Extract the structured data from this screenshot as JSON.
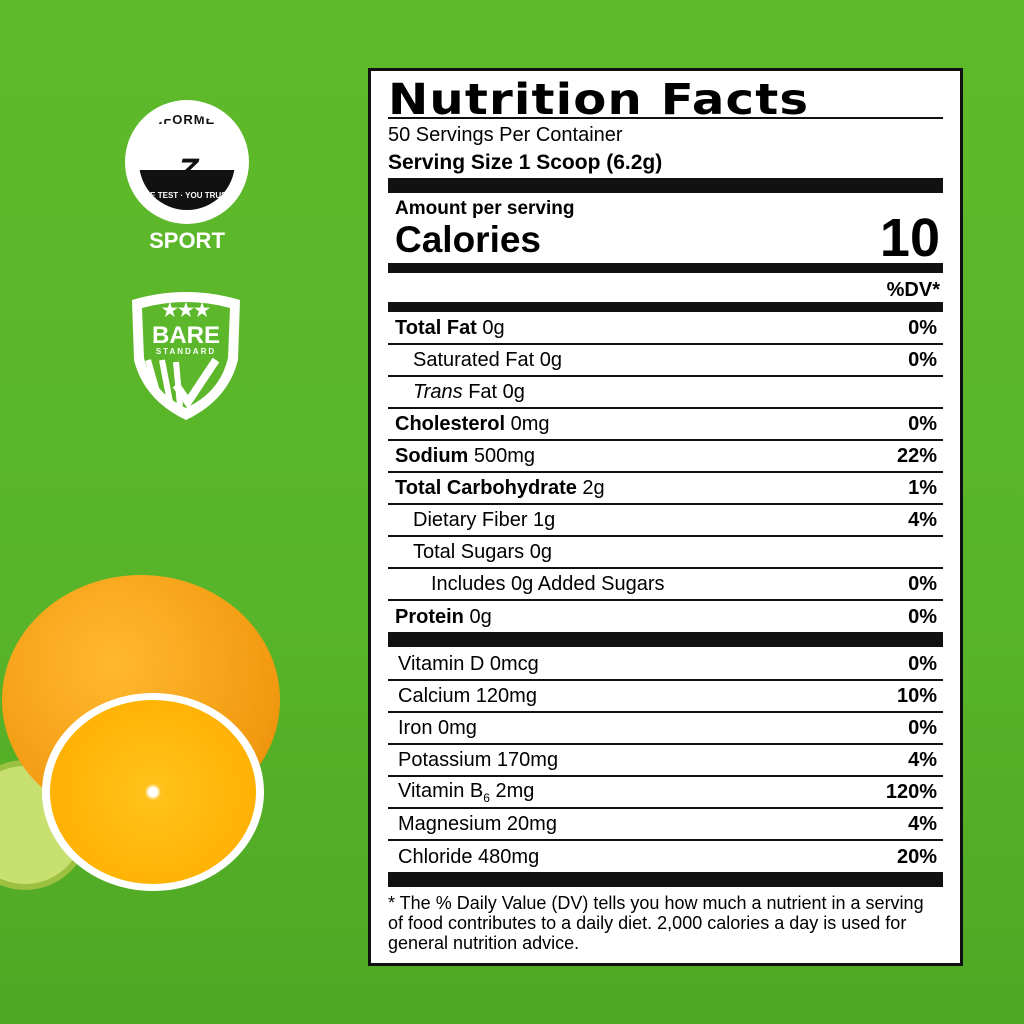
{
  "badges": {
    "informed": {
      "top": "INFORMED",
      "bottom": "WE TEST · YOU TRUST",
      "sub": "SPORT"
    },
    "bare": {
      "line1": "BARE",
      "line2": "STANDARD",
      "stars": "★★★"
    }
  },
  "label": {
    "title": "Nutrition Facts",
    "servings": "50 Servings Per Container",
    "serving_size": "Serving Size 1 Scoop (6.2g)",
    "amount_per_serving": "Amount per serving",
    "calories_label": "Calories",
    "calories_value": "10",
    "dv_header": "%DV*",
    "nutrients": [
      {
        "name": "Total Fat",
        "amount": " 0g",
        "dv": "0%",
        "bold": true,
        "indent": 0
      },
      {
        "name": "Saturated Fat 0g",
        "amount": "",
        "dv": "0%",
        "bold": false,
        "indent": 1
      },
      {
        "name": "Trans",
        "amount": " Fat 0g",
        "dv": "",
        "bold": false,
        "indent": 1,
        "italic": true
      },
      {
        "name": "Cholesterol",
        "amount": " 0mg",
        "dv": "0%",
        "bold": true,
        "indent": 0
      },
      {
        "name": "Sodium",
        "amount": " 500mg",
        "dv": "22%",
        "bold": true,
        "indent": 0
      },
      {
        "name": "Total Carbohydrate",
        "amount": " 2g",
        "dv": "1%",
        "bold": true,
        "indent": 0
      },
      {
        "name": "Dietary Fiber 1g",
        "amount": "",
        "dv": "4%",
        "bold": false,
        "indent": 1
      },
      {
        "name": "Total Sugars 0g",
        "amount": "",
        "dv": "",
        "bold": false,
        "indent": 1
      },
      {
        "name": "Includes 0g Added Sugars",
        "amount": "",
        "dv": "0%",
        "bold": false,
        "indent": 2
      },
      {
        "name": "Protein",
        "amount": " 0g",
        "dv": "0%",
        "bold": true,
        "indent": 0
      }
    ],
    "vitamins": [
      {
        "name": "Vitamin D 0mcg",
        "dv": "0%"
      },
      {
        "name": "Calcium 120mg",
        "dv": "10%"
      },
      {
        "name": "Iron 0mg",
        "dv": "0%"
      },
      {
        "name": "Potassium 170mg",
        "dv": "4%"
      },
      {
        "name": "Vitamin B",
        "sub": "6",
        "rest": " 2mg",
        "dv": "120%"
      },
      {
        "name": "Magnesium 20mg",
        "dv": "4%"
      },
      {
        "name": "Chloride 480mg",
        "dv": "20%"
      }
    ],
    "footnote": "* The % Daily Value (DV) tells you how much a nutrient in a serving of food contributes to a daily diet. 2,000 calories a day is used for general nutrition advice."
  }
}
